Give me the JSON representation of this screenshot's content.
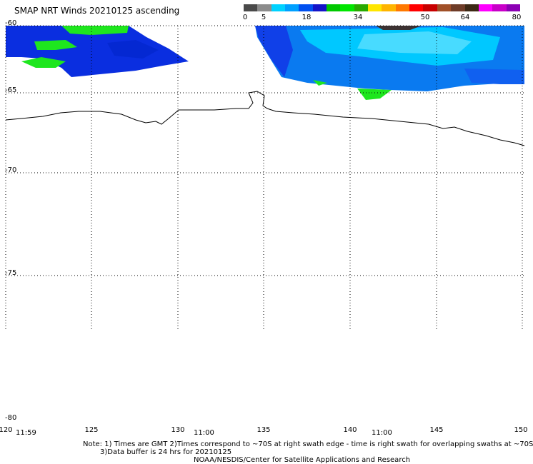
{
  "title": "SMAP NRT Winds 20210125 ascending",
  "colorbar": {
    "segments": [
      {
        "color": "#4a4a4a"
      },
      {
        "color": "#8c8c8c"
      },
      {
        "color": "#00d2ff"
      },
      {
        "color": "#00a0ff"
      },
      {
        "color": "#0050f0"
      },
      {
        "color": "#1414c8"
      },
      {
        "color": "#00c800"
      },
      {
        "color": "#00e600"
      },
      {
        "color": "#28aa00"
      },
      {
        "color": "#ffe600"
      },
      {
        "color": "#ffb400"
      },
      {
        "color": "#ff7800"
      },
      {
        "color": "#ff0000"
      },
      {
        "color": "#c80000"
      },
      {
        "color": "#a05028"
      },
      {
        "color": "#6e3c28"
      },
      {
        "color": "#3c2814"
      },
      {
        "color": "#ff00ff"
      },
      {
        "color": "#c800c8"
      },
      {
        "color": "#8c00b4"
      }
    ],
    "ticks": [
      "0",
      "5",
      "18",
      "34",
      "50",
      "64",
      "80"
    ]
  },
  "lat_labels": [
    "-60",
    "-65",
    "-70",
    "-75",
    "-80"
  ],
  "lon_labels": [
    "120",
    "125",
    "130",
    "135",
    "140",
    "145",
    "150"
  ],
  "time_labels": [
    "11:59",
    "11:00",
    "11:00"
  ],
  "notes": {
    "line1": "Note: 1) Times are GMT 2)Times correspond to ~70S at right swath edge - time is right swath for overlapping swaths at ~70S",
    "line2": "3)Data buffer is 24 hrs for 20210125",
    "line3": "NOAA/NESDIS/Center for Satellite Applications and Research"
  }
}
